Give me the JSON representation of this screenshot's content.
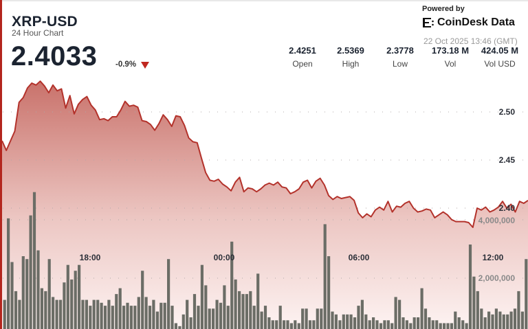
{
  "header": {
    "symbol": "XRP-USD",
    "subtitle": "24 Hour Chart",
    "price": "2.4033",
    "change": "-0.9%",
    "direction": "down"
  },
  "stats": [
    {
      "value": "2.4251",
      "label": "Open"
    },
    {
      "value": "2.5369",
      "label": "High"
    },
    {
      "value": "2.3778",
      "label": "Low"
    },
    {
      "value": "173.18 M",
      "label": "Vol"
    },
    {
      "value": "424.05 M",
      "label": "Vol USD"
    }
  ],
  "branding": {
    "powered_by": "Powered by",
    "brand": "CoinDesk Data",
    "timestamp": "22 Oct 2025 13:46 (GMT)"
  },
  "colors": {
    "line": "#b3322b",
    "fill_top": "#c9726b",
    "fill_bottom": "#fbeeed",
    "volume_bar": "#6b6d66",
    "accent": "#b3261e"
  },
  "chart_data": {
    "type": "line",
    "title": "XRP-USD 24 Hour Chart",
    "xlabel": "",
    "ylabel": "",
    "x_tick_labels": [
      "18:00",
      "00:00",
      "06:00",
      "12:00"
    ],
    "y_tick_labels": [
      "2.50",
      "2.45",
      "2.40"
    ],
    "volume_tick_labels": [
      "4,000,000",
      "2,000,000"
    ],
    "ylim": [
      2.375,
      2.54
    ],
    "grid": "dotted horizontal",
    "price_series": {
      "name": "Price",
      "values": [
        2.47,
        2.46,
        2.47,
        2.48,
        2.51,
        2.515,
        2.525,
        2.53,
        2.528,
        2.532,
        2.527,
        2.52,
        2.528,
        2.522,
        2.524,
        2.504,
        2.517,
        2.498,
        2.508,
        2.513,
        2.516,
        2.507,
        2.502,
        2.492,
        2.493,
        2.491,
        2.495,
        2.495,
        2.502,
        2.511,
        2.506,
        2.507,
        2.505,
        2.491,
        2.49,
        2.487,
        2.481,
        2.488,
        2.497,
        2.492,
        2.485,
        2.496,
        2.495,
        2.486,
        2.473,
        2.469,
        2.468,
        2.452,
        2.437,
        2.429,
        2.428,
        2.43,
        2.425,
        2.422,
        2.418,
        2.427,
        2.432,
        2.417,
        2.421,
        2.42,
        2.417,
        2.42,
        2.424,
        2.426,
        2.424,
        2.427,
        2.422,
        2.421,
        2.415,
        2.417,
        2.42,
        2.427,
        2.429,
        2.421,
        2.428,
        2.431,
        2.424,
        2.413,
        2.409,
        2.412,
        2.41,
        2.411,
        2.412,
        2.408,
        2.395,
        2.39,
        2.394,
        2.391,
        2.398,
        2.401,
        2.398,
        2.407,
        2.396,
        2.402,
        2.401,
        2.405,
        2.407,
        2.4,
        2.396,
        2.397,
        2.399,
        2.398,
        2.39,
        2.393,
        2.396,
        2.393,
        2.388,
        2.386,
        2.386,
        2.386,
        2.385,
        2.38,
        2.4,
        2.398,
        2.401,
        2.396,
        2.398,
        2.401,
        2.407,
        2.4,
        2.404,
        2.396,
        2.407,
        2.405,
        2.408
      ]
    },
    "volume_series": {
      "name": "Volume",
      "values": [
        1000000,
        3800000,
        2300000,
        1300000,
        1000000,
        2500000,
        2400000,
        3900000,
        4700000,
        2700000,
        1400000,
        1300000,
        2400000,
        1100000,
        1000000,
        1000000,
        1600000,
        2200000,
        1700000,
        2000000,
        2200000,
        1000000,
        1000000,
        800000,
        1000000,
        1000000,
        900000,
        800000,
        1000000,
        800000,
        1200000,
        1400000,
        800000,
        900000,
        800000,
        800000,
        1100000,
        2000000,
        1100000,
        800000,
        1000000,
        600000,
        900000,
        900000,
        2400000,
        800000,
        200000,
        100000,
        500000,
        1000000,
        400000,
        1200000,
        800000,
        2200000,
        1500000,
        700000,
        700000,
        1000000,
        900000,
        1500000,
        800000,
        3000000,
        1700000,
        1300000,
        1200000,
        1200000,
        1300000,
        800000,
        1900000,
        600000,
        800000,
        400000,
        300000,
        300000,
        800000,
        300000,
        300000,
        200000,
        300000,
        200000,
        700000,
        700000,
        300000,
        300000,
        700000,
        700000,
        3600000,
        2500000,
        600000,
        500000,
        300000,
        500000,
        500000,
        500000,
        400000,
        800000,
        1000000,
        500000,
        300000,
        400000,
        300000,
        200000,
        300000,
        300000,
        200000,
        1100000,
        1000000,
        400000,
        300000,
        200000,
        400000,
        400000,
        1400000,
        700000,
        400000,
        300000,
        300000,
        200000,
        200000,
        200000,
        200000,
        600000,
        400000,
        300000,
        200000,
        2900000,
        1800000,
        1300000,
        700000,
        400000,
        600000,
        500000,
        700000,
        600000,
        500000,
        500000,
        600000,
        700000,
        1300000,
        600000,
        2400000
      ]
    }
  }
}
